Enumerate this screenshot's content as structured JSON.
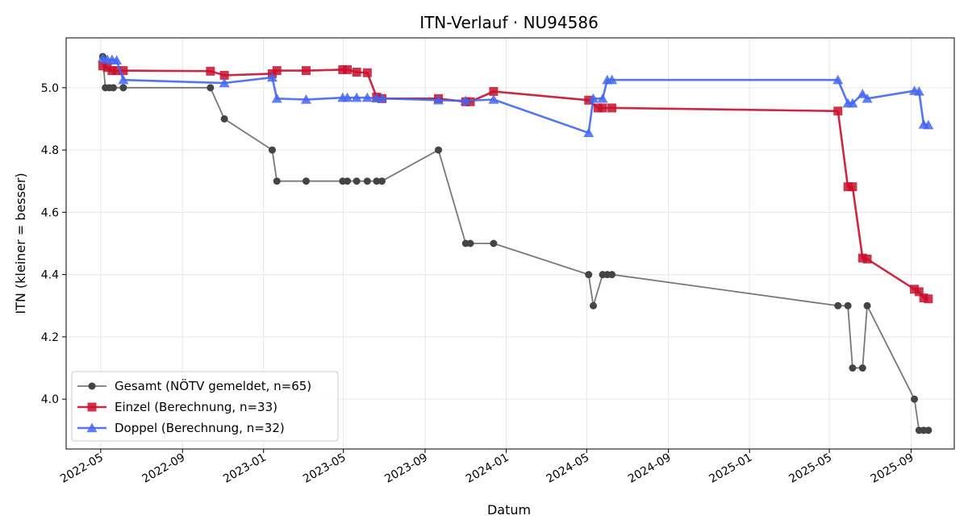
{
  "chart_data": {
    "type": "line",
    "title": "ITN-Verlauf · NU94586",
    "xlabel": "Datum",
    "ylabel": "ITN  (kleiner = besser)",
    "xlim": [
      "2022-03-10",
      "2025-11-05"
    ],
    "ylim": [
      3.84,
      5.16
    ],
    "x_ticks": [
      "2022-05-01",
      "2022-09-01",
      "2023-01-01",
      "2023-05-01",
      "2023-09-01",
      "2024-01-01",
      "2024-05-01",
      "2024-09-01",
      "2025-01-01",
      "2025-05-01",
      "2025-09-01"
    ],
    "x_tick_labels": [
      "2022-05",
      "2022-09",
      "2023-01",
      "2023-05",
      "2023-09",
      "2024-01",
      "2024-05",
      "2024-09",
      "2025-01",
      "2025-05",
      "2025-09"
    ],
    "y_ticks": [
      4.0,
      4.2,
      4.4,
      4.6,
      4.8,
      5.0
    ],
    "y_tick_labels": [
      "4.0",
      "4.2",
      "4.4",
      "4.6",
      "4.8",
      "5.0"
    ],
    "grid": true,
    "legend_position": "lower-left",
    "series": [
      {
        "name": "Gesamt (NÖTV gemeldet, n=65)",
        "color": "#444444",
        "marker": "circle",
        "points": [
          [
            "2022-05-04",
            5.1
          ],
          [
            "2022-05-08",
            5.0
          ],
          [
            "2022-05-14",
            5.0
          ],
          [
            "2022-05-20",
            5.0
          ],
          [
            "2022-06-04",
            5.0
          ],
          [
            "2022-10-13",
            5.0
          ],
          [
            "2022-11-03",
            4.9
          ],
          [
            "2023-01-14",
            4.8
          ],
          [
            "2023-01-21",
            4.7
          ],
          [
            "2023-03-06",
            4.7
          ],
          [
            "2023-04-30",
            4.7
          ],
          [
            "2023-05-07",
            4.7
          ],
          [
            "2023-05-21",
            4.7
          ],
          [
            "2023-06-06",
            4.7
          ],
          [
            "2023-06-20",
            4.7
          ],
          [
            "2023-06-28",
            4.7
          ],
          [
            "2023-09-21",
            4.8
          ],
          [
            "2023-11-01",
            4.5
          ],
          [
            "2023-11-08",
            4.5
          ],
          [
            "2023-12-13",
            4.5
          ],
          [
            "2024-05-04",
            4.4
          ],
          [
            "2024-05-11",
            4.3
          ],
          [
            "2024-05-25",
            4.4
          ],
          [
            "2024-06-01",
            4.4
          ],
          [
            "2024-06-08",
            4.4
          ],
          [
            "2025-05-14",
            4.3
          ],
          [
            "2025-05-29",
            4.3
          ],
          [
            "2025-06-05",
            4.1
          ],
          [
            "2025-06-20",
            4.1
          ],
          [
            "2025-06-27",
            4.3
          ],
          [
            "2025-09-06",
            4.0
          ],
          [
            "2025-09-13",
            3.9
          ],
          [
            "2025-09-20",
            3.9
          ],
          [
            "2025-09-27",
            3.9
          ]
        ]
      },
      {
        "name": "Einzel (Berechnung, n=33)",
        "color": "#c8102e",
        "marker": "square",
        "points": [
          [
            "2022-05-04",
            5.07
          ],
          [
            "2022-05-11",
            5.065
          ],
          [
            "2022-05-18",
            5.055
          ],
          [
            "2022-05-25",
            5.055
          ],
          [
            "2022-06-04",
            5.055
          ],
          [
            "2022-10-13",
            5.053
          ],
          [
            "2022-11-03",
            5.04
          ],
          [
            "2023-01-14",
            5.045
          ],
          [
            "2023-01-21",
            5.055
          ],
          [
            "2023-03-06",
            5.055
          ],
          [
            "2023-04-30",
            5.058
          ],
          [
            "2023-05-07",
            5.058
          ],
          [
            "2023-05-21",
            5.05
          ],
          [
            "2023-06-06",
            5.048
          ],
          [
            "2023-06-20",
            4.97
          ],
          [
            "2023-06-28",
            4.965
          ],
          [
            "2023-09-21",
            4.965
          ],
          [
            "2023-11-01",
            4.955
          ],
          [
            "2023-11-08",
            4.955
          ],
          [
            "2023-12-13",
            4.988
          ],
          [
            "2024-05-04",
            4.96
          ],
          [
            "2024-05-18",
            4.935
          ],
          [
            "2024-05-25",
            4.935
          ],
          [
            "2024-06-08",
            4.935
          ],
          [
            "2025-05-14",
            4.925
          ],
          [
            "2025-05-29",
            4.682
          ],
          [
            "2025-06-05",
            4.682
          ],
          [
            "2025-06-20",
            4.453
          ],
          [
            "2025-06-27",
            4.45
          ],
          [
            "2025-09-06",
            4.353
          ],
          [
            "2025-09-13",
            4.345
          ],
          [
            "2025-09-20",
            4.325
          ],
          [
            "2025-09-27",
            4.322
          ]
        ]
      },
      {
        "name": "Doppel (Berechnung, n=32)",
        "color": "#4466ee",
        "marker": "triangle",
        "points": [
          [
            "2022-05-04",
            5.095
          ],
          [
            "2022-05-11",
            5.09
          ],
          [
            "2022-05-18",
            5.09
          ],
          [
            "2022-05-25",
            5.088
          ],
          [
            "2022-06-04",
            5.025
          ],
          [
            "2022-11-03",
            5.015
          ],
          [
            "2023-01-14",
            5.033
          ],
          [
            "2023-01-21",
            4.965
          ],
          [
            "2023-03-06",
            4.962
          ],
          [
            "2023-04-30",
            4.968
          ],
          [
            "2023-05-07",
            4.968
          ],
          [
            "2023-05-21",
            4.968
          ],
          [
            "2023-06-06",
            4.968
          ],
          [
            "2023-06-20",
            4.966
          ],
          [
            "2023-06-28",
            4.966
          ],
          [
            "2023-09-21",
            4.96
          ],
          [
            "2023-11-01",
            4.958
          ],
          [
            "2023-12-13",
            4.962
          ],
          [
            "2024-05-04",
            4.855
          ],
          [
            "2024-05-11",
            4.965
          ],
          [
            "2024-05-25",
            4.965
          ],
          [
            "2024-06-01",
            5.025
          ],
          [
            "2024-06-08",
            5.025
          ],
          [
            "2025-05-14",
            5.025
          ],
          [
            "2025-05-29",
            4.95
          ],
          [
            "2025-06-05",
            4.95
          ],
          [
            "2025-06-20",
            4.98
          ],
          [
            "2025-06-27",
            4.965
          ],
          [
            "2025-09-06",
            4.99
          ],
          [
            "2025-09-13",
            4.988
          ],
          [
            "2025-09-20",
            4.882
          ],
          [
            "2025-09-27",
            4.88
          ]
        ]
      }
    ]
  }
}
